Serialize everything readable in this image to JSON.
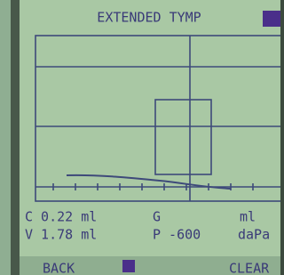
{
  "header": {
    "title": "EXTENDED TYMP"
  },
  "readout": {
    "row1": {
      "c": "C 0.22 ml",
      "g": "G",
      "g_unit": "ml"
    },
    "row2": {
      "v": "V 1.78 ml",
      "p": "P -600",
      "p_unit": "daPa"
    }
  },
  "softkeys": {
    "left": "BACK",
    "right": "CLEAR"
  }
}
